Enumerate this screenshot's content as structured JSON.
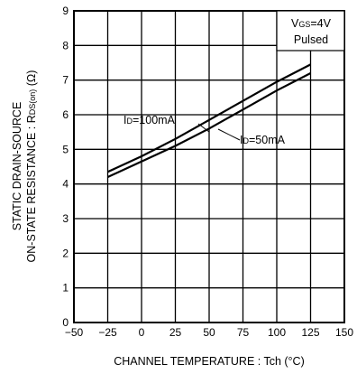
{
  "chart_data": {
    "type": "line",
    "xlabel": "CHANNEL  TEMPERATURE : Tch (°C)",
    "ylabel_line1": "STATIC  DRAIN-SOURCE",
    "ylabel_line2": "ON-STATE  RESISTANCE : R",
    "ylabel_sub": "DS(on)",
    "ylabel_unit": " (Ω)",
    "xlim": [
      -50,
      150
    ],
    "ylim": [
      0,
      9
    ],
    "xticks": [
      -50,
      -25,
      0,
      25,
      50,
      75,
      100,
      125,
      150
    ],
    "yticks": [
      0,
      1,
      2,
      3,
      4,
      5,
      6,
      7,
      8,
      9
    ],
    "grid": true,
    "condition_box": {
      "line1_main": "V",
      "line1_sub": "GS",
      "line1_rest": "=4V",
      "line2": "Pulsed"
    },
    "series": [
      {
        "name_main": "I",
        "name_sub": "D",
        "name_rest": "=100mA",
        "x": [
          -25,
          0,
          25,
          50,
          75,
          100,
          125
        ],
        "y": [
          4.35,
          4.8,
          5.3,
          5.85,
          6.4,
          6.95,
          7.45
        ]
      },
      {
        "name_main": "I",
        "name_sub": "D",
        "name_rest": "=50mA",
        "x": [
          -25,
          0,
          25,
          50,
          75,
          100,
          125
        ],
        "y": [
          4.2,
          4.65,
          5.1,
          5.6,
          6.15,
          6.7,
          7.2
        ]
      }
    ]
  }
}
